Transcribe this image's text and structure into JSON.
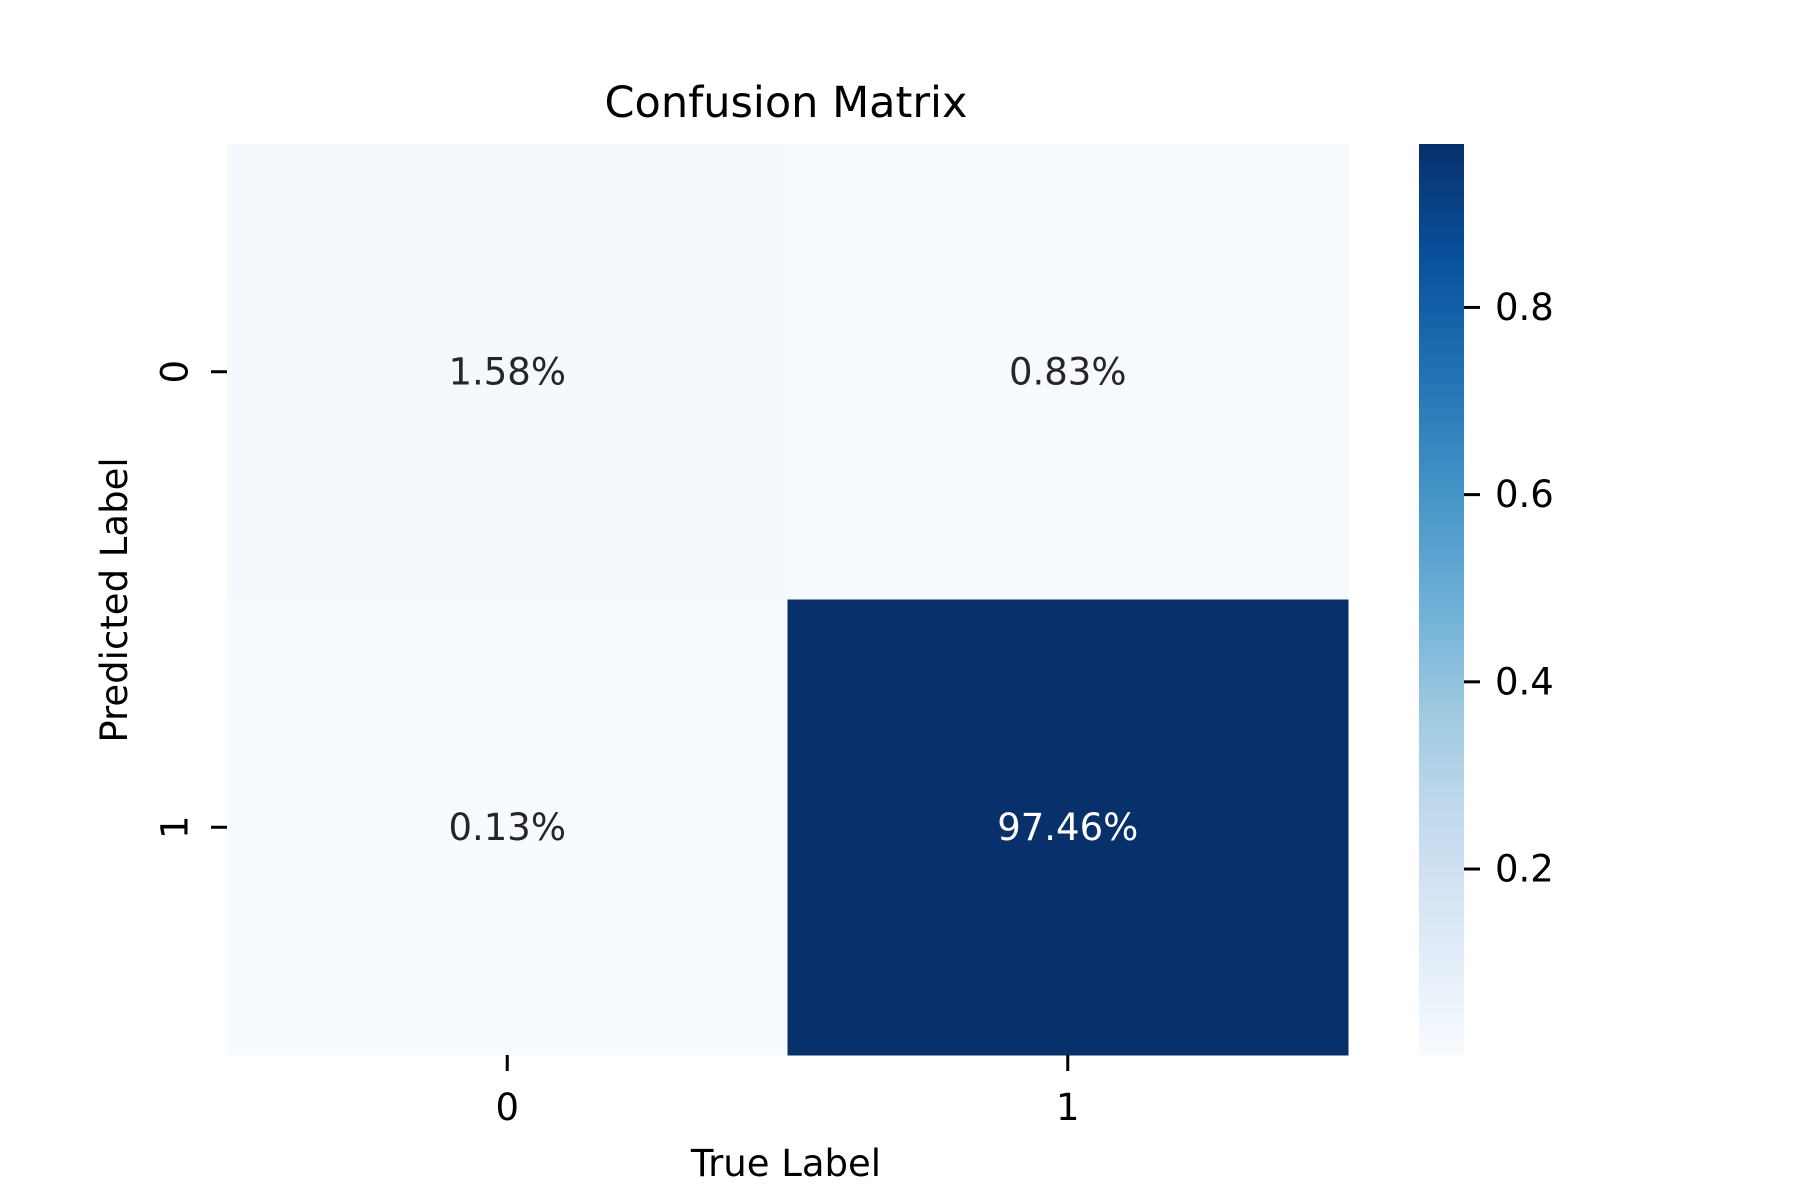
{
  "chart_data": {
    "type": "heatmap",
    "title": "Confusion Matrix",
    "xlabel": "True Label",
    "ylabel": "Predicted Label",
    "x_categories": [
      "0",
      "1"
    ],
    "y_categories": [
      "0",
      "1"
    ],
    "values": [
      [
        0.0158,
        0.0083
      ],
      [
        0.0013,
        0.9746
      ]
    ],
    "annotations": [
      [
        "1.58%",
        "0.83%"
      ],
      [
        "0.13%",
        "97.46%"
      ]
    ],
    "colormap": "Blues",
    "colorbar": {
      "min": 0.0013,
      "max": 0.9746,
      "ticks": [
        0.2,
        0.4,
        0.6,
        0.8
      ],
      "tick_labels": [
        "0.2",
        "0.4",
        "0.6",
        "0.8"
      ]
    },
    "annotation_colors": {
      "dark": "#262626",
      "light": "#ffffff"
    }
  }
}
